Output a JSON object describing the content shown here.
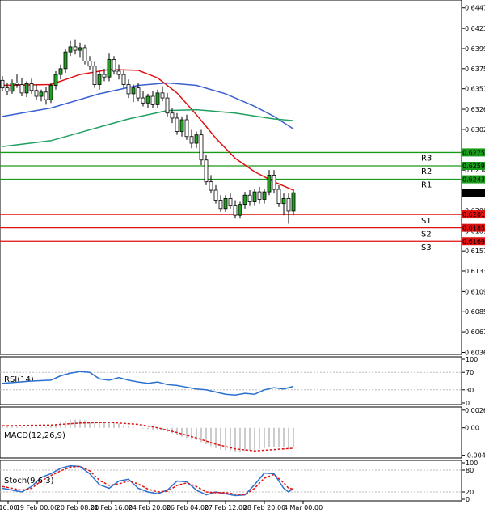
{
  "chart_data": [
    {
      "type": "candlestick",
      "panel": "price",
      "y_ticks": [
        "0.64475",
        "0.64230",
        "0.63990",
        "0.63750",
        "0.63510",
        "0.63265",
        "0.63025",
        "0.62540",
        "0.62060",
        "0.61815",
        "0.61575",
        "0.61335",
        "0.61090",
        "0.60850",
        "0.60610",
        "0.60365"
      ],
      "ylim": [
        0.6036,
        0.6454
      ],
      "x_ticks": [
        "16:00",
        "19 Feb 00:00",
        "20 Feb 08:00",
        "21 Feb 16:00",
        "24 Feb 20:00",
        "26 Feb 04:00",
        "27 Feb 12:00",
        "28 Feb 20:00",
        "4 Mar 00:00"
      ],
      "levels": [
        {
          "name": "R3",
          "value": 0.6275,
          "value_label": "0.62750",
          "color": "#1a9a1a"
        },
        {
          "name": "R2",
          "value": 0.6259,
          "value_label": "0.62590",
          "color": "#1a9a1a"
        },
        {
          "name": "R1",
          "value": 0.6243,
          "value_label": "0.62430",
          "color": "#1a9a1a"
        },
        {
          "name": "S1",
          "value": 0.6201,
          "value_label": "0.62010",
          "color": "#e01010"
        },
        {
          "name": "S2",
          "value": 0.6185,
          "value_label": "0.61850",
          "color": "#e01010"
        },
        {
          "name": "S3",
          "value": 0.6169,
          "value_label": "0.61690",
          "color": "#e01010"
        }
      ],
      "current_price": {
        "value": 0.62267,
        "label": "0.62267"
      },
      "candles": [
        [
          0.6361,
          0.6366,
          0.6348,
          0.6352
        ],
        [
          0.6352,
          0.6358,
          0.6344,
          0.6348
        ],
        [
          0.6348,
          0.6362,
          0.6345,
          0.6358
        ],
        [
          0.6358,
          0.6368,
          0.6352,
          0.6356
        ],
        [
          0.6356,
          0.6364,
          0.6342,
          0.6346
        ],
        [
          0.6346,
          0.636,
          0.6341,
          0.6357
        ],
        [
          0.6357,
          0.6363,
          0.6345,
          0.6349
        ],
        [
          0.6349,
          0.6356,
          0.6338,
          0.6342
        ],
        [
          0.6342,
          0.635,
          0.6336,
          0.6347
        ],
        [
          0.6347,
          0.6353,
          0.6332,
          0.6338
        ],
        [
          0.6338,
          0.6358,
          0.6334,
          0.6355
        ],
        [
          0.6355,
          0.6372,
          0.635,
          0.6368
        ],
        [
          0.6368,
          0.638,
          0.6362,
          0.6375
        ],
        [
          0.6375,
          0.6398,
          0.637,
          0.6395
        ],
        [
          0.6395,
          0.6408,
          0.639,
          0.6401
        ],
        [
          0.6401,
          0.641,
          0.6392,
          0.6397
        ],
        [
          0.6397,
          0.6406,
          0.6388,
          0.64
        ],
        [
          0.64,
          0.6404,
          0.638,
          0.6384
        ],
        [
          0.6384,
          0.639,
          0.6374,
          0.6378
        ],
        [
          0.6378,
          0.6383,
          0.6352,
          0.6356
        ],
        [
          0.6356,
          0.6372,
          0.635,
          0.6368
        ],
        [
          0.6368,
          0.6375,
          0.636,
          0.6365
        ],
        [
          0.6365,
          0.6393,
          0.636,
          0.6386
        ],
        [
          0.6386,
          0.639,
          0.6368,
          0.6372
        ],
        [
          0.6372,
          0.638,
          0.6362,
          0.6368
        ],
        [
          0.6368,
          0.6374,
          0.6352,
          0.6356
        ],
        [
          0.6356,
          0.6362,
          0.634,
          0.6345
        ],
        [
          0.6345,
          0.6356,
          0.6335,
          0.6352
        ],
        [
          0.6352,
          0.6358,
          0.6336,
          0.634
        ],
        [
          0.634,
          0.6348,
          0.633,
          0.6334
        ],
        [
          0.6334,
          0.6345,
          0.6328,
          0.6342
        ],
        [
          0.6342,
          0.6348,
          0.6328,
          0.6332
        ],
        [
          0.6332,
          0.635,
          0.6328,
          0.6346
        ],
        [
          0.6346,
          0.6354,
          0.6336,
          0.634
        ],
        [
          0.634,
          0.6346,
          0.6318,
          0.6322
        ],
        [
          0.6322,
          0.6328,
          0.631,
          0.6316
        ],
        [
          0.6316,
          0.6322,
          0.6296,
          0.63
        ],
        [
          0.63,
          0.6318,
          0.6294,
          0.6314
        ],
        [
          0.6314,
          0.632,
          0.629,
          0.6294
        ],
        [
          0.6294,
          0.6302,
          0.628,
          0.6286
        ],
        [
          0.6286,
          0.63,
          0.628,
          0.6296
        ],
        [
          0.6296,
          0.6302,
          0.626,
          0.6266
        ],
        [
          0.6266,
          0.6272,
          0.6236,
          0.624
        ],
        [
          0.624,
          0.6248,
          0.6226,
          0.623
        ],
        [
          0.623,
          0.6236,
          0.6214,
          0.6218
        ],
        [
          0.6218,
          0.6224,
          0.6204,
          0.6208
        ],
        [
          0.6208,
          0.6224,
          0.6204,
          0.622
        ],
        [
          0.622,
          0.6226,
          0.6208,
          0.6212
        ],
        [
          0.6212,
          0.6218,
          0.6196,
          0.62
        ],
        [
          0.62,
          0.6216,
          0.6196,
          0.6213
        ],
        [
          0.6213,
          0.6228,
          0.6208,
          0.6224
        ],
        [
          0.6224,
          0.623,
          0.6212,
          0.6216
        ],
        [
          0.6216,
          0.6232,
          0.6212,
          0.6228
        ],
        [
          0.6228,
          0.6234,
          0.6214,
          0.6219
        ],
        [
          0.6219,
          0.6232,
          0.6214,
          0.6228
        ],
        [
          0.6228,
          0.6254,
          0.6224,
          0.6248
        ],
        [
          0.6248,
          0.6254,
          0.6226,
          0.6231
        ],
        [
          0.6231,
          0.6236,
          0.621,
          0.6214
        ],
        [
          0.6214,
          0.6226,
          0.62,
          0.622
        ],
        [
          0.622,
          0.6226,
          0.619,
          0.6205
        ],
        [
          0.6205,
          0.6231,
          0.62,
          0.6227
        ]
      ],
      "series": [
        {
          "color": "#e01010",
          "values": [
            [
              0,
              0.6355
            ],
            [
              10,
              0.6356
            ],
            [
              16,
              0.6368
            ],
            [
              22,
              0.6374
            ],
            [
              28,
              0.6373
            ],
            [
              32,
              0.6364
            ],
            [
              36,
              0.6346
            ],
            [
              40,
              0.632
            ],
            [
              44,
              0.6292
            ],
            [
              48,
              0.6268
            ],
            [
              52,
              0.6252
            ],
            [
              56,
              0.624
            ],
            [
              60,
              0.623
            ]
          ]
        },
        {
          "color": "#3a5fd0",
          "values": [
            [
              0,
              0.6318
            ],
            [
              10,
              0.6328
            ],
            [
              20,
              0.6345
            ],
            [
              28,
              0.6355
            ],
            [
              34,
              0.6358
            ],
            [
              40,
              0.6355
            ],
            [
              46,
              0.6345
            ],
            [
              52,
              0.633
            ],
            [
              56,
              0.6318
            ],
            [
              60,
              0.6303
            ]
          ]
        },
        {
          "color": "#20a060",
          "values": [
            [
              0,
              0.6282
            ],
            [
              10,
              0.6289
            ],
            [
              18,
              0.6302
            ],
            [
              26,
              0.6315
            ],
            [
              34,
              0.6325
            ],
            [
              40,
              0.6326
            ],
            [
              48,
              0.6322
            ],
            [
              56,
              0.6315
            ],
            [
              60,
              0.6313
            ]
          ]
        }
      ]
    },
    {
      "type": "line",
      "panel": "rsi",
      "title": "RSI(14)",
      "y_ticks": [
        "100",
        "70",
        "30",
        "0"
      ],
      "ylim": [
        0,
        100
      ],
      "series": [
        {
          "color": "#2a70d0",
          "values": [
            [
              0,
              45
            ],
            [
              6,
              50
            ],
            [
              10,
              52
            ],
            [
              12,
              62
            ],
            [
              14,
              68
            ],
            [
              16,
              72
            ],
            [
              18,
              70
            ],
            [
              20,
              55
            ],
            [
              22,
              52
            ],
            [
              24,
              58
            ],
            [
              26,
              52
            ],
            [
              28,
              48
            ],
            [
              30,
              45
            ],
            [
              32,
              48
            ],
            [
              34,
              42
            ],
            [
              36,
              40
            ],
            [
              38,
              36
            ],
            [
              40,
              32
            ],
            [
              42,
              30
            ],
            [
              44,
              25
            ],
            [
              46,
              20
            ],
            [
              48,
              18
            ],
            [
              50,
              22
            ],
            [
              52,
              20
            ],
            [
              54,
              30
            ],
            [
              56,
              35
            ],
            [
              58,
              32
            ],
            [
              60,
              38
            ]
          ]
        }
      ]
    },
    {
      "type": "bar",
      "panel": "macd",
      "title": "MACD(12,26,9)",
      "y_ticks": [
        "0.002606",
        "0.00",
        "-0.004036"
      ],
      "ylim": [
        -0.0042,
        0.0027
      ],
      "values": [
        0.0002,
        0.0002,
        0.0002,
        0.00015,
        0.0001,
        0.0001,
        0.00012,
        0.0001,
        5e-05,
        0.0001,
        0.0003,
        0.0005,
        0.0008,
        0.001,
        0.0012,
        0.0012,
        0.0012,
        0.0011,
        0.0009,
        0.0007,
        0.0007,
        0.0008,
        0.0009,
        0.0008,
        0.0006,
        0.0004,
        0.0002,
        0.0001,
        0.0,
        -0.0001,
        -0.0002,
        -0.0003,
        -0.0003,
        -0.0004,
        -0.0006,
        -0.0008,
        -0.0011,
        -0.0013,
        -0.0015,
        -0.0017,
        -0.0018,
        -0.0021,
        -0.0024,
        -0.0027,
        -0.003,
        -0.0032,
        -0.0033,
        -0.0034,
        -0.0035,
        -0.0035,
        -0.0034,
        -0.0033,
        -0.0032,
        -0.0031,
        -0.003,
        -0.0028,
        -0.0028,
        -0.0029,
        -0.0029,
        -0.003,
        -0.0029
      ],
      "signal": {
        "color": "#e01010",
        "values": [
          [
            0,
            0.0003
          ],
          [
            10,
            0.0004
          ],
          [
            16,
            0.0007
          ],
          [
            22,
            0.0008
          ],
          [
            28,
            0.0005
          ],
          [
            32,
            0.0
          ],
          [
            36,
            -0.0007
          ],
          [
            40,
            -0.0015
          ],
          [
            44,
            -0.0024
          ],
          [
            48,
            -0.0031
          ],
          [
            52,
            -0.0034
          ],
          [
            56,
            -0.0032
          ],
          [
            60,
            -0.003
          ]
        ]
      }
    },
    {
      "type": "line",
      "panel": "stoch",
      "title": "Stoch(9,6,3)",
      "y_ticks": [
        "100",
        "80",
        "20",
        "0"
      ],
      "ylim": [
        0,
        100
      ],
      "series": [
        {
          "color": "#2a70d0",
          "values": [
            [
              0,
              30
            ],
            [
              4,
              20
            ],
            [
              6,
              35
            ],
            [
              8,
              60
            ],
            [
              10,
              70
            ],
            [
              12,
              85
            ],
            [
              14,
              92
            ],
            [
              16,
              90
            ],
            [
              18,
              70
            ],
            [
              20,
              40
            ],
            [
              22,
              30
            ],
            [
              24,
              50
            ],
            [
              26,
              55
            ],
            [
              28,
              30
            ],
            [
              30,
              20
            ],
            [
              32,
              15
            ],
            [
              34,
              25
            ],
            [
              36,
              50
            ],
            [
              38,
              48
            ],
            [
              40,
              25
            ],
            [
              42,
              12
            ],
            [
              44,
              20
            ],
            [
              46,
              15
            ],
            [
              48,
              10
            ],
            [
              50,
              12
            ],
            [
              52,
              40
            ],
            [
              54,
              72
            ],
            [
              56,
              70
            ],
            [
              58,
              30
            ],
            [
              59,
              20
            ],
            [
              60,
              30
            ]
          ]
        },
        {
          "color": "#e01010",
          "dashed": true,
          "values": [
            [
              0,
              35
            ],
            [
              4,
              25
            ],
            [
              6,
              30
            ],
            [
              8,
              50
            ],
            [
              10,
              65
            ],
            [
              12,
              78
            ],
            [
              14,
              88
            ],
            [
              16,
              90
            ],
            [
              18,
              78
            ],
            [
              20,
              52
            ],
            [
              22,
              38
            ],
            [
              24,
              42
            ],
            [
              26,
              50
            ],
            [
              28,
              42
            ],
            [
              30,
              28
            ],
            [
              32,
              20
            ],
            [
              34,
              22
            ],
            [
              36,
              38
            ],
            [
              38,
              45
            ],
            [
              40,
              35
            ],
            [
              42,
              20
            ],
            [
              44,
              18
            ],
            [
              46,
              18
            ],
            [
              48,
              14
            ],
            [
              50,
              12
            ],
            [
              52,
              30
            ],
            [
              54,
              58
            ],
            [
              56,
              68
            ],
            [
              58,
              45
            ],
            [
              59,
              30
            ],
            [
              60,
              28
            ]
          ]
        }
      ]
    }
  ]
}
